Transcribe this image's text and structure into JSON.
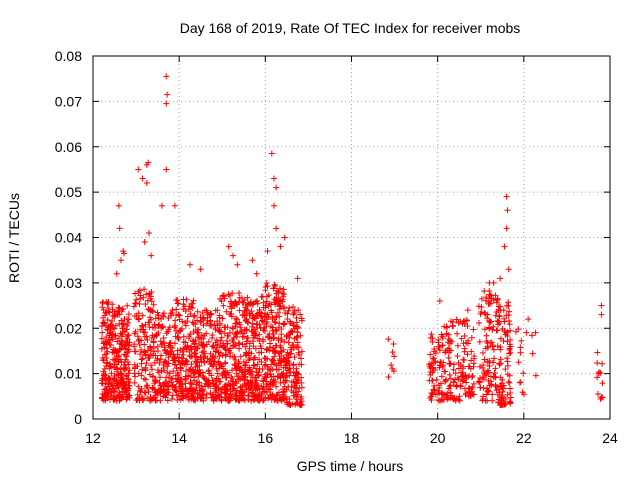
{
  "chart_data": {
    "type": "scatter",
    "title": "Day 168 of 2019, Rate Of TEC Index for receiver mobs",
    "xlabel": "GPS time / hours",
    "ylabel": "ROTI / TECUs",
    "xlim": [
      12,
      24
    ],
    "ylim": [
      0,
      0.08
    ],
    "xticks": [
      12,
      14,
      16,
      18,
      20,
      22,
      24
    ],
    "xtick_labels": [
      "12",
      "14",
      "16",
      "18",
      "20",
      "22",
      "24"
    ],
    "yticks": [
      0,
      0.01,
      0.02,
      0.03,
      0.04,
      0.05,
      0.06,
      0.07,
      0.08
    ],
    "ytick_labels": [
      "0",
      "0.01",
      "0.02",
      "0.03",
      "0.04",
      "0.05",
      "0.06",
      "0.07",
      "0.08"
    ],
    "grid": true,
    "marker": "+",
    "color": "#ff0000",
    "clusters": [
      {
        "x_range": [
          12.2,
          12.45
        ],
        "y_range": [
          0.004,
          0.026
        ],
        "count": 120
      },
      {
        "x_range": [
          12.45,
          12.85
        ],
        "y_range": [
          0.004,
          0.025
        ],
        "count": 200
      },
      {
        "x_range": [
          12.95,
          13.45
        ],
        "y_range": [
          0.004,
          0.029
        ],
        "count": 150
      },
      {
        "x_range": [
          13.45,
          13.9
        ],
        "y_range": [
          0.004,
          0.024
        ],
        "count": 130
      },
      {
        "x_range": [
          13.9,
          14.4
        ],
        "y_range": [
          0.004,
          0.027
        ],
        "count": 200
      },
      {
        "x_range": [
          14.4,
          14.95
        ],
        "y_range": [
          0.004,
          0.024
        ],
        "count": 190
      },
      {
        "x_range": [
          14.95,
          15.5
        ],
        "y_range": [
          0.004,
          0.028
        ],
        "count": 210
      },
      {
        "x_range": [
          15.5,
          16.0
        ],
        "y_range": [
          0.004,
          0.027
        ],
        "count": 220
      },
      {
        "x_range": [
          16.0,
          16.45
        ],
        "y_range": [
          0.004,
          0.03
        ],
        "count": 200
      },
      {
        "x_range": [
          16.45,
          16.85
        ],
        "y_range": [
          0.003,
          0.025
        ],
        "count": 150
      },
      {
        "x_range": [
          18.85,
          19.0
        ],
        "y_range": [
          0.008,
          0.019
        ],
        "count": 8
      },
      {
        "x_range": [
          19.8,
          20.15
        ],
        "y_range": [
          0.004,
          0.019
        ],
        "count": 70
      },
      {
        "x_range": [
          20.15,
          20.6
        ],
        "y_range": [
          0.004,
          0.022
        ],
        "count": 90
      },
      {
        "x_range": [
          20.6,
          20.85
        ],
        "y_range": [
          0.005,
          0.022
        ],
        "count": 50
      },
      {
        "x_range": [
          20.95,
          21.4
        ],
        "y_range": [
          0.004,
          0.029
        ],
        "count": 110
      },
      {
        "x_range": [
          21.4,
          21.7
        ],
        "y_range": [
          0.003,
          0.026
        ],
        "count": 90
      },
      {
        "x_range": [
          21.8,
          22.3
        ],
        "y_range": [
          0.004,
          0.02
        ],
        "count": 16
      },
      {
        "x_range": [
          23.7,
          23.85
        ],
        "y_range": [
          0.004,
          0.016
        ],
        "count": 12
      }
    ],
    "notable_points": [
      {
        "x": 12.55,
        "y": 0.032
      },
      {
        "x": 12.6,
        "y": 0.047
      },
      {
        "x": 12.62,
        "y": 0.042
      },
      {
        "x": 12.7,
        "y": 0.037
      },
      {
        "x": 12.65,
        "y": 0.035
      },
      {
        "x": 12.72,
        "y": 0.0365
      },
      {
        "x": 13.05,
        "y": 0.055
      },
      {
        "x": 13.15,
        "y": 0.053
      },
      {
        "x": 13.25,
        "y": 0.056
      },
      {
        "x": 13.25,
        "y": 0.052
      },
      {
        "x": 13.28,
        "y": 0.0565
      },
      {
        "x": 13.3,
        "y": 0.041
      },
      {
        "x": 13.2,
        "y": 0.039
      },
      {
        "x": 13.35,
        "y": 0.036
      },
      {
        "x": 13.6,
        "y": 0.047
      },
      {
        "x": 13.7,
        "y": 0.0755
      },
      {
        "x": 13.72,
        "y": 0.0715
      },
      {
        "x": 13.7,
        "y": 0.0695
      },
      {
        "x": 13.7,
        "y": 0.055
      },
      {
        "x": 13.9,
        "y": 0.047
      },
      {
        "x": 14.25,
        "y": 0.034
      },
      {
        "x": 14.5,
        "y": 0.033
      },
      {
        "x": 15.15,
        "y": 0.038
      },
      {
        "x": 15.25,
        "y": 0.036
      },
      {
        "x": 15.35,
        "y": 0.034
      },
      {
        "x": 15.7,
        "y": 0.035
      },
      {
        "x": 15.8,
        "y": 0.032
      },
      {
        "x": 16.05,
        "y": 0.037
      },
      {
        "x": 16.15,
        "y": 0.0585
      },
      {
        "x": 16.2,
        "y": 0.053
      },
      {
        "x": 16.25,
        "y": 0.051
      },
      {
        "x": 16.2,
        "y": 0.047
      },
      {
        "x": 16.25,
        "y": 0.042
      },
      {
        "x": 16.35,
        "y": 0.038
      },
      {
        "x": 16.45,
        "y": 0.04
      },
      {
        "x": 16.75,
        "y": 0.031
      },
      {
        "x": 20.05,
        "y": 0.026
      },
      {
        "x": 20.7,
        "y": 0.024
      },
      {
        "x": 21.2,
        "y": 0.03
      },
      {
        "x": 21.3,
        "y": 0.03
      },
      {
        "x": 21.45,
        "y": 0.031
      },
      {
        "x": 21.55,
        "y": 0.038
      },
      {
        "x": 21.6,
        "y": 0.049
      },
      {
        "x": 21.62,
        "y": 0.046
      },
      {
        "x": 21.6,
        "y": 0.042
      },
      {
        "x": 21.65,
        "y": 0.033
      },
      {
        "x": 22.1,
        "y": 0.022
      },
      {
        "x": 23.8,
        "y": 0.025
      },
      {
        "x": 23.8,
        "y": 0.023
      }
    ]
  }
}
